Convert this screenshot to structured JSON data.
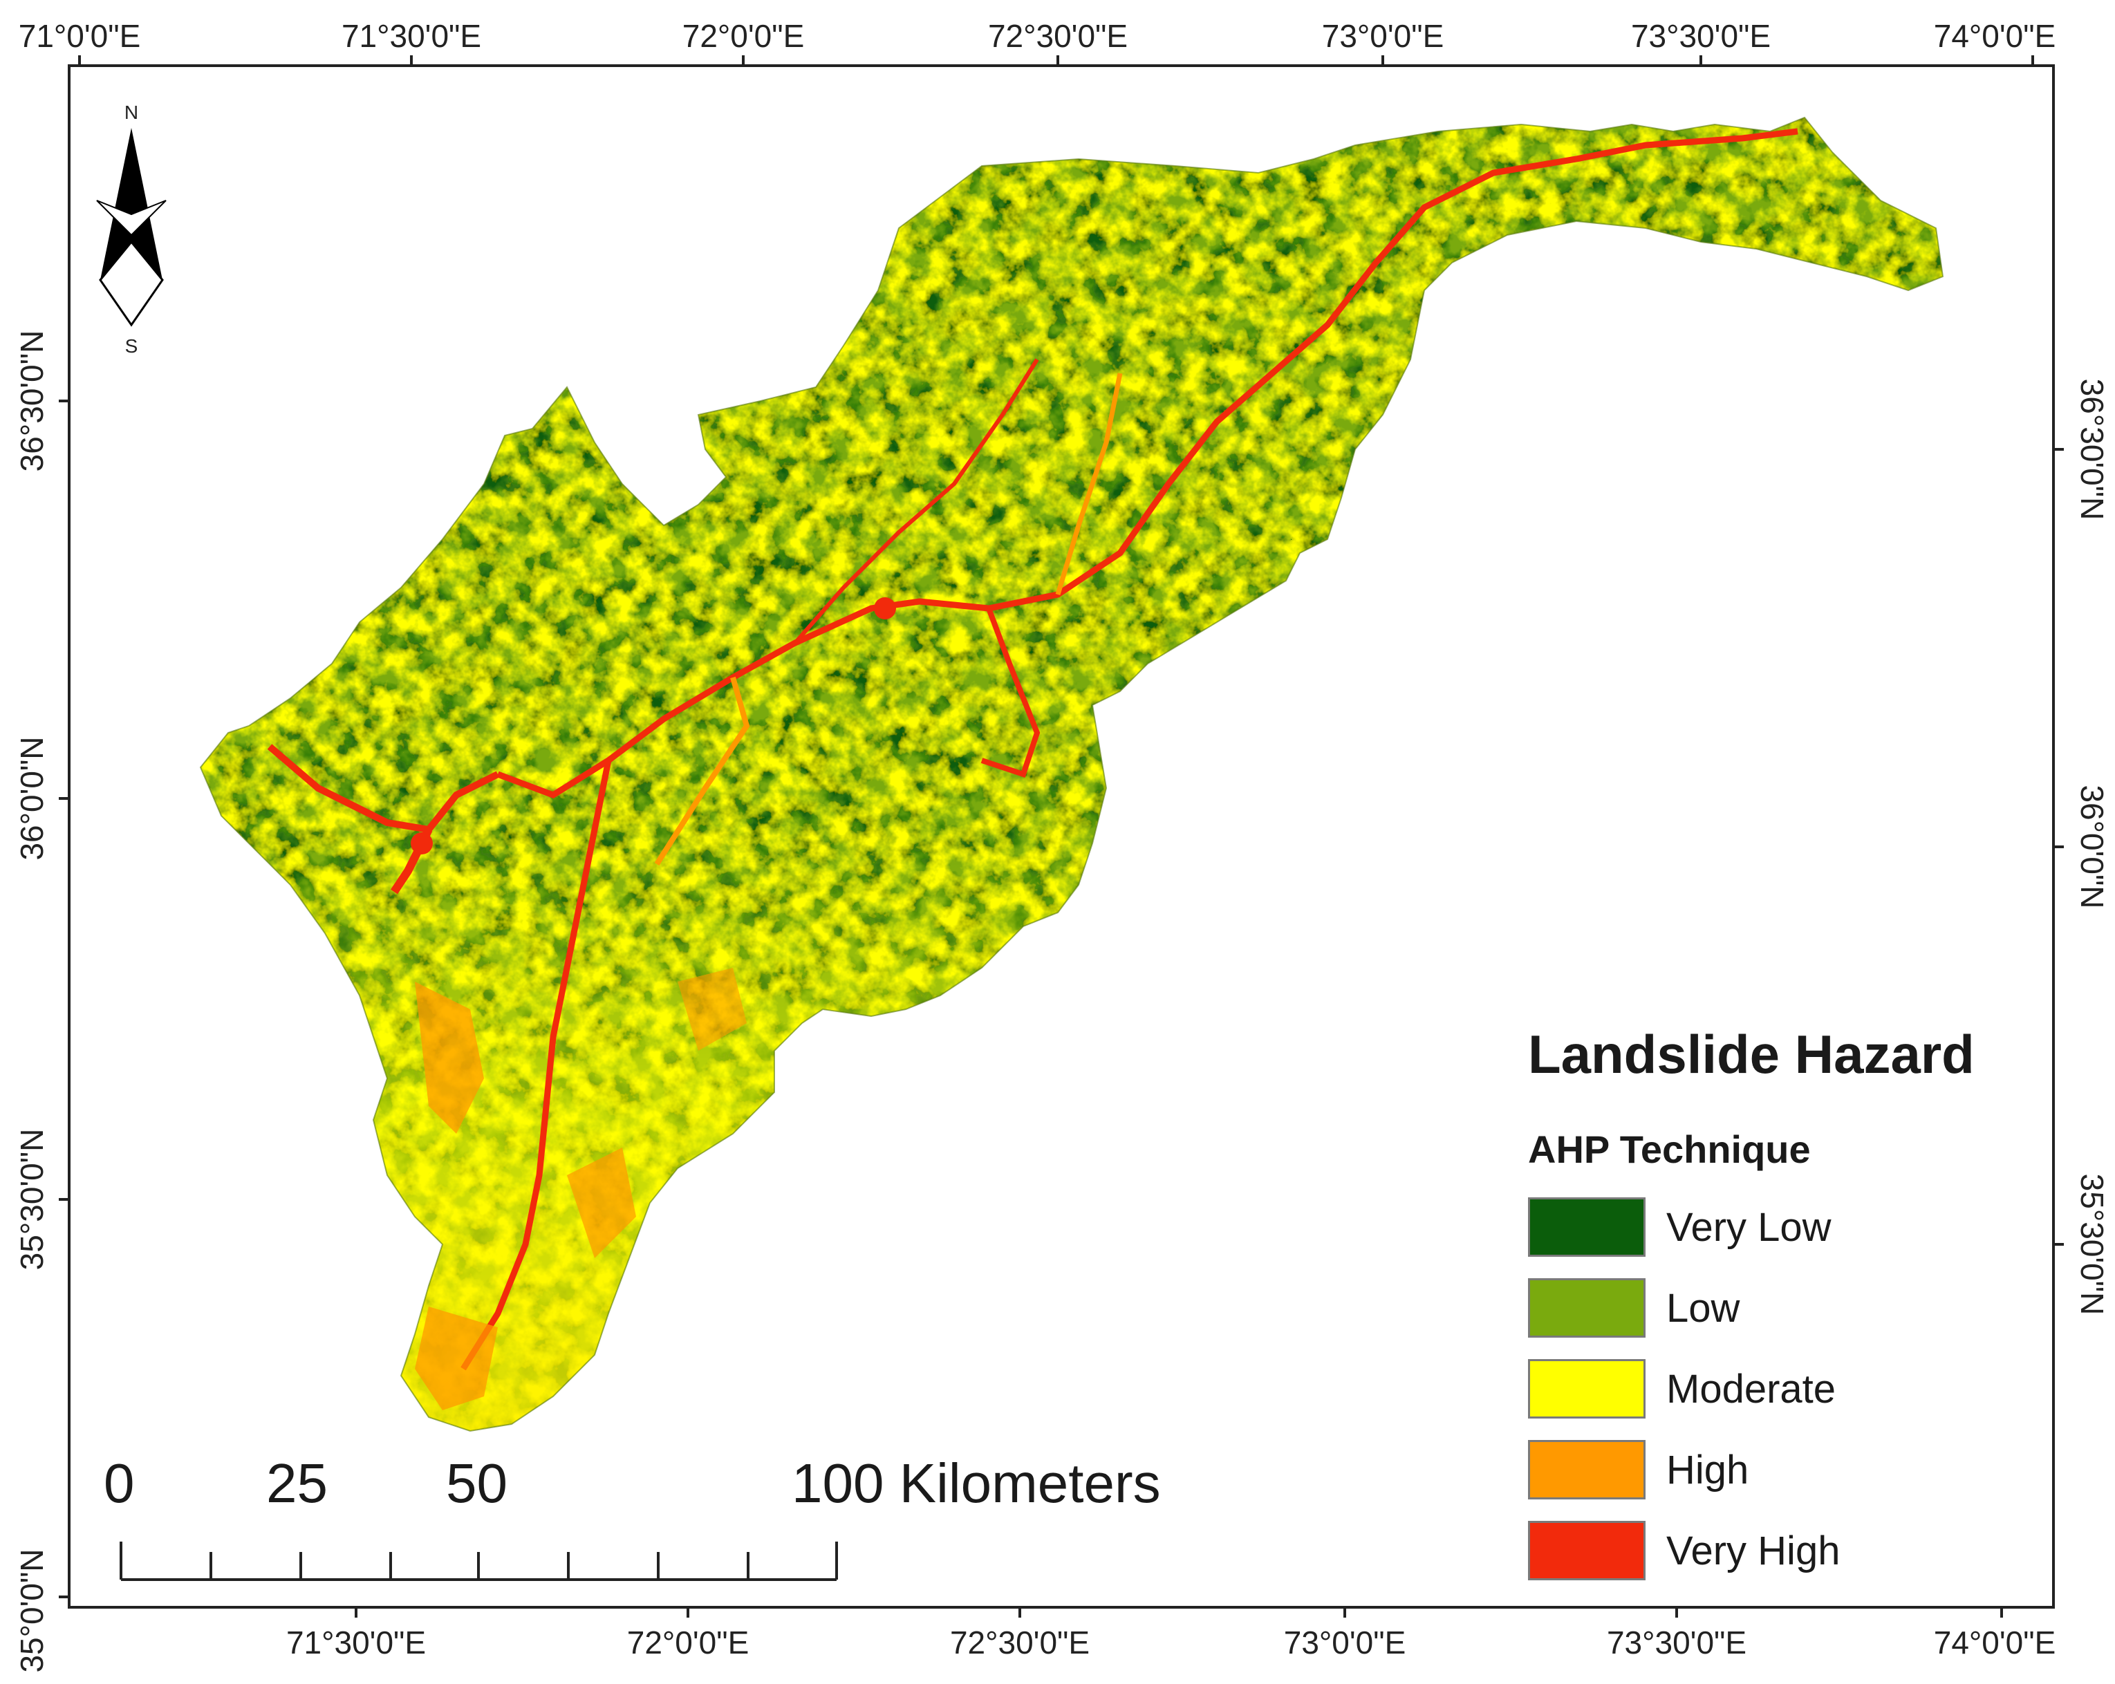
{
  "map": {
    "top_lon_labels": [
      "71°0'0\"E",
      "71°30'0\"E",
      "72°0'0\"E",
      "72°30'0\"E",
      "73°0'0\"E",
      "73°30'0\"E",
      "74°0'0\"E"
    ],
    "bottom_lon_labels": [
      "71°30'0\"E",
      "72°0'0\"E",
      "72°30'0\"E",
      "73°0'0\"E",
      "73°30'0\"E",
      "74°0'0\"E"
    ],
    "left_lat_labels": [
      "36°30'0\"N",
      "36°0'0\"N",
      "35°30'0\"N",
      "35°0'0\"N"
    ],
    "right_lat_labels": [
      "36°30'0\"N",
      "36°0'0\"N",
      "35°30'0\"N"
    ]
  },
  "north_arrow": {
    "north": "N",
    "south": "S"
  },
  "legend": {
    "title": "Landslide Hazard",
    "subtitle": "AHP Technique",
    "items": [
      {
        "label": "Very Low",
        "color": "#0b5d0b"
      },
      {
        "label": "Low",
        "color": "#7aaa0e"
      },
      {
        "label": "Moderate",
        "color": "#ffff00"
      },
      {
        "label": "High",
        "color": "#ff9900"
      },
      {
        "label": "Very High",
        "color": "#f22a0c"
      }
    ]
  },
  "scale_bar": {
    "labels": [
      "0",
      "25",
      "50",
      "100 Kilometers"
    ]
  }
}
